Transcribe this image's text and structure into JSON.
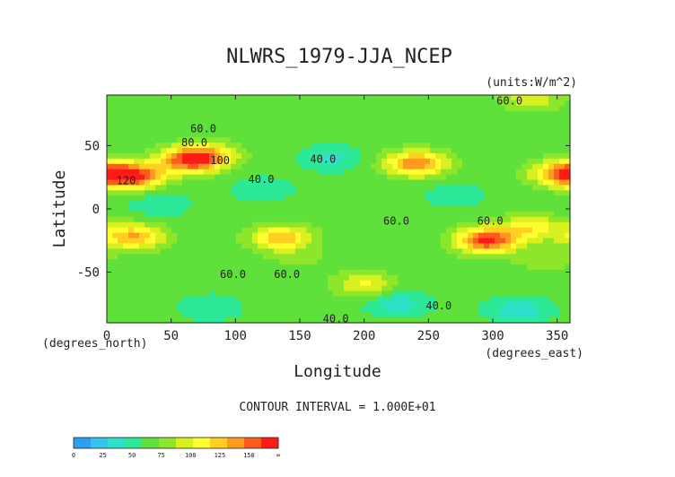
{
  "chart_data": {
    "type": "heatmap",
    "title": "NLWRS_1979-JJA_NCEP",
    "units": "(units:W/m^2)",
    "xlabel": "Longitude",
    "ylabel": "Latitude",
    "x_unit_label": "(degrees_east)",
    "y_unit_label": "(degrees_north)",
    "xlim": [
      0,
      360
    ],
    "ylim": [
      -90,
      90
    ],
    "x_ticks": [
      0,
      50,
      100,
      150,
      200,
      250,
      300,
      350
    ],
    "y_ticks": [
      -50,
      0,
      50
    ],
    "x_tick_labels": [
      "0",
      "50",
      "100",
      "150",
      "200",
      "250",
      "300",
      "350"
    ],
    "y_tick_labels": [
      "-50",
      "0",
      "50"
    ],
    "contour_interval_text": "CONTOUR INTERVAL = 1.000E+01",
    "contour_labels": [
      {
        "text": "60.0",
        "lon": 313,
        "lat": 85
      },
      {
        "text": "60.0",
        "lon": 75,
        "lat": 63
      },
      {
        "text": "80.0",
        "lon": 68,
        "lat": 52
      },
      {
        "text": "100",
        "lon": 88,
        "lat": 38
      },
      {
        "text": "120",
        "lon": 15,
        "lat": 22
      },
      {
        "text": "40.0",
        "lon": 168,
        "lat": 39
      },
      {
        "text": "40.0",
        "lon": 120,
        "lat": 23
      },
      {
        "text": "60.0",
        "lon": 225,
        "lat": -10
      },
      {
        "text": "60.0",
        "lon": 298,
        "lat": -10
      },
      {
        "text": "60.0",
        "lon": 98,
        "lat": -52
      },
      {
        "text": "60.0",
        "lon": 140,
        "lat": -52
      },
      {
        "text": "40.0",
        "lon": 258,
        "lat": -77
      },
      {
        "text": "40.0",
        "lon": 178,
        "lat": -87
      }
    ],
    "colorbar": {
      "ticks": [
        "0",
        "25",
        "50",
        "75",
        "100",
        "125",
        "150",
        "∞"
      ],
      "colors": [
        "#2aa0ee",
        "#33c4ee",
        "#2ee0c8",
        "#2ee89a",
        "#5fe03a",
        "#8ee62a",
        "#d8f020",
        "#ffff30",
        "#ffd020",
        "#ff9a20",
        "#ff5a20",
        "#ff1a1a"
      ]
    },
    "field": {
      "base_value": 55,
      "features": [
        {
          "lon": 20,
          "lat": 26,
          "value": 135
        },
        {
          "lon": 62,
          "lat": 38,
          "value": 120
        },
        {
          "lon": 78,
          "lat": 42,
          "value": 105
        },
        {
          "lon": 240,
          "lat": 36,
          "value": 125
        },
        {
          "lon": 355,
          "lat": 28,
          "value": 125
        },
        {
          "lon": 20,
          "lat": -22,
          "value": 115
        },
        {
          "lon": 135,
          "lat": -23,
          "value": 110
        },
        {
          "lon": 295,
          "lat": -25,
          "value": 140
        },
        {
          "lon": 330,
          "lat": -15,
          "value": 95
        },
        {
          "lon": 175,
          "lat": 40,
          "value": 35
        },
        {
          "lon": 120,
          "lat": 15,
          "value": 40
        },
        {
          "lon": 270,
          "lat": 10,
          "value": 42
        },
        {
          "lon": 40,
          "lat": 3,
          "value": 40
        },
        {
          "lon": 225,
          "lat": -75,
          "value": 30
        },
        {
          "lon": 320,
          "lat": -80,
          "value": 28
        },
        {
          "lon": 80,
          "lat": -78,
          "value": 38
        },
        {
          "lon": 150,
          "lat": -40,
          "value": 65
        },
        {
          "lon": 200,
          "lat": -60,
          "value": 90
        },
        {
          "lon": 340,
          "lat": -40,
          "value": 70
        },
        {
          "lon": 330,
          "lat": 88,
          "value": 85
        }
      ]
    }
  }
}
